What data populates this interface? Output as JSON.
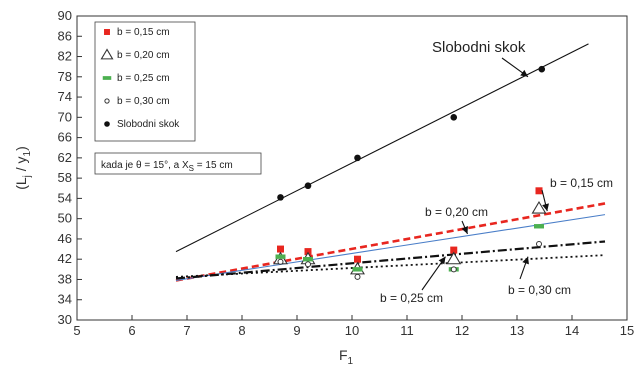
{
  "chart_data": {
    "type": "scatter",
    "xlabel": "F",
    "xlabel_sub": "1",
    "ylabel": "(L",
    "ylabel_sub": "j",
    "ylabel_mid": " / y",
    "ylabel_sub2": "1",
    "ylabel_end": ")",
    "xlim": [
      5,
      15
    ],
    "ylim": [
      30,
      90
    ],
    "x_ticks": [
      "5",
      "6",
      "7",
      "8",
      "9",
      "10",
      "11",
      "12",
      "13",
      "14",
      "15"
    ],
    "y_ticks": [
      "30",
      "34",
      "38",
      "42",
      "46",
      "50",
      "54",
      "58",
      "62",
      "66",
      "70",
      "74",
      "78",
      "82",
      "86",
      "90"
    ],
    "grid": false,
    "legend_position": "top-left",
    "series": [
      {
        "name": "b = 0,15 cm",
        "marker": "square",
        "color": "#e8261f",
        "points": [
          [
            8.7,
            44.0
          ],
          [
            9.2,
            43.5
          ],
          [
            10.1,
            42.0
          ],
          [
            11.85,
            43.8
          ],
          [
            13.4,
            55.5
          ]
        ],
        "trend": {
          "x": [
            6.8,
            14.6
          ],
          "y": [
            37.8,
            53.0
          ],
          "style": "dashed",
          "color": "#e8261f"
        }
      },
      {
        "name": "b = 0,20 cm",
        "marker": "triangle-open",
        "color": "#333333",
        "points": [
          [
            8.7,
            42.0
          ],
          [
            9.2,
            42.0
          ],
          [
            10.1,
            40.0
          ],
          [
            11.85,
            42.0
          ],
          [
            13.4,
            52.0
          ]
        ],
        "trend": {
          "x": [
            6.8,
            14.6
          ],
          "y": [
            37.8,
            50.8
          ],
          "style": "solid",
          "color": "#4a7ec8"
        }
      },
      {
        "name": "b = 0,25 cm",
        "marker": "dash-green",
        "color": "#4cb050",
        "points": [
          [
            8.7,
            42.5
          ],
          [
            9.2,
            42.0
          ],
          [
            10.1,
            40.0
          ],
          [
            11.85,
            40.0
          ],
          [
            13.4,
            48.5
          ]
        ],
        "trend": {
          "x": [
            6.8,
            14.6
          ],
          "y": [
            38.2,
            45.5
          ],
          "style": "dashdot",
          "color": "#111111"
        }
      },
      {
        "name": "b = 0,30 cm",
        "marker": "circle-open",
        "color": "#333333",
        "points": [
          [
            8.7,
            41.5
          ],
          [
            9.2,
            41.0
          ],
          [
            10.1,
            38.5
          ],
          [
            11.85,
            40.0
          ],
          [
            13.4,
            45.0
          ]
        ],
        "trend": {
          "x": [
            6.8,
            14.6
          ],
          "y": [
            38.5,
            42.8
          ],
          "style": "dotted",
          "color": "#111111"
        }
      },
      {
        "name": "Slobodni skok",
        "marker": "circle-filled",
        "color": "#111111",
        "points": [
          [
            8.7,
            54.2
          ],
          [
            9.2,
            56.5
          ],
          [
            10.1,
            62.0
          ],
          [
            11.85,
            70.0
          ],
          [
            13.45,
            79.5
          ]
        ],
        "trend": {
          "x": [
            6.8,
            14.3
          ],
          "y": [
            43.5,
            84.5
          ],
          "style": "solid",
          "color": "#111111"
        }
      }
    ],
    "annotations": [
      {
        "text": "Slobodni skok",
        "arrow_to": [
          13.2,
          78.0
        ]
      },
      {
        "text": "b = 0,15 cm",
        "arrow_to": [
          13.55,
          51.5
        ]
      },
      {
        "text": "b = 0,20 cm",
        "arrow_to": [
          12.1,
          47.0
        ]
      },
      {
        "text": "b = 0,25 cm",
        "arrow_to": [
          11.7,
          42.5
        ]
      },
      {
        "text": "b = 0,30 cm",
        "arrow_to": [
          13.2,
          42.5
        ]
      }
    ],
    "condition_box": {
      "part1": "kada je θ = 15°, a X",
      "sub": "S",
      "part2": " = 15 cm"
    }
  }
}
